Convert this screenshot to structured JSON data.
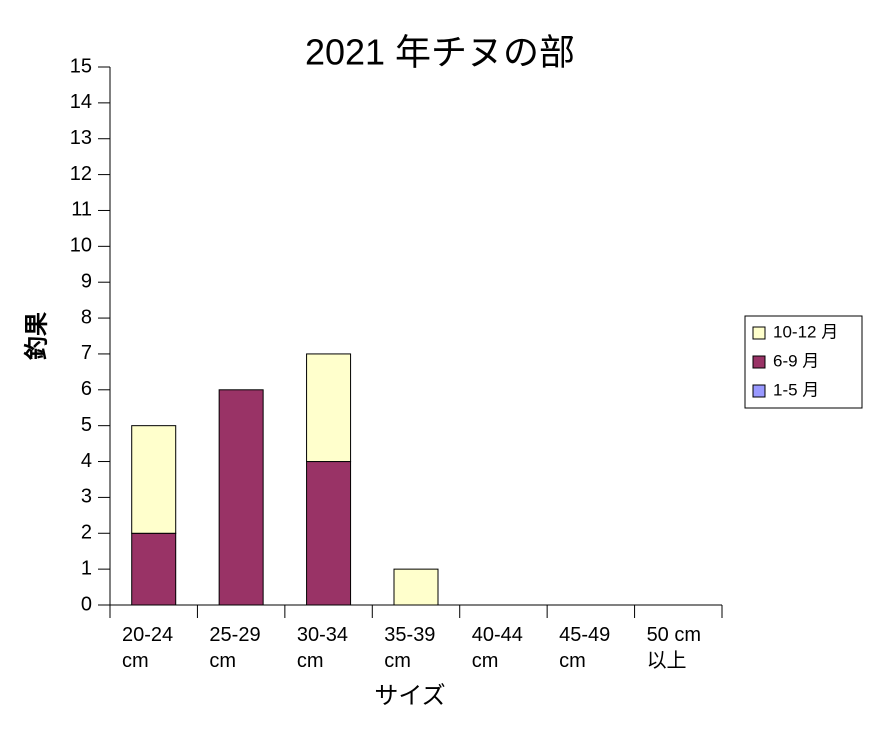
{
  "chart_data": {
    "type": "stacked_bar",
    "title": "2021 年チヌの部",
    "x_label": "サイズ",
    "y_label": "釣果",
    "categories": [
      "20-24 cm",
      "25-29 cm",
      "30-34 cm",
      "35-39 cm",
      "40-44 cm",
      "45-49 cm",
      "50 cm 以上"
    ],
    "series": [
      {
        "name": "1-5 月",
        "color": "#9999ff",
        "values": [
          0,
          0,
          0,
          0,
          0,
          0,
          0
        ]
      },
      {
        "name": "6-9 月",
        "color": "#993366",
        "values": [
          2,
          6,
          4,
          0,
          0,
          0,
          0
        ]
      },
      {
        "name": "10-12 月",
        "color": "#ffffcc",
        "values": [
          3,
          0,
          3,
          1,
          0,
          0,
          0
        ]
      }
    ],
    "ylim": [
      0,
      15
    ],
    "yticks": [
      0,
      1,
      2,
      3,
      4,
      5,
      6,
      7,
      8,
      9,
      10,
      11,
      12,
      13,
      14,
      15
    ],
    "grid": false,
    "legend": "right"
  }
}
